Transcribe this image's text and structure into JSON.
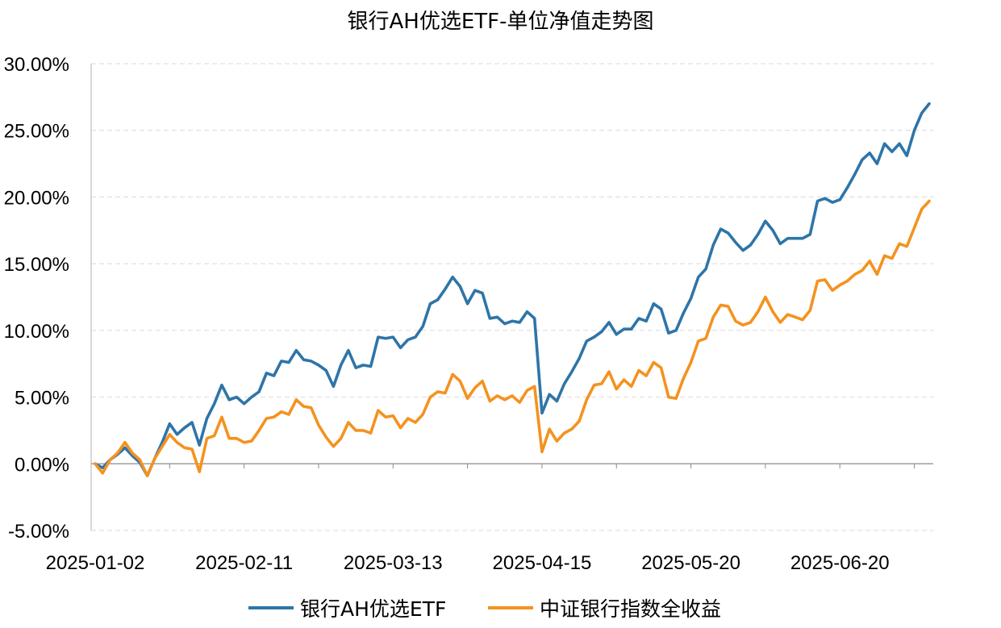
{
  "chart_data": {
    "type": "line",
    "title": "银行AH优选ETF-单位净值走势图",
    "xlabel": "",
    "ylabel": "",
    "ylim": [
      -0.05,
      0.3
    ],
    "y_ticks": [
      "-5.00%",
      "0.00%",
      "5.00%",
      "10.00%",
      "15.00%",
      "20.00%",
      "25.00%",
      "30.00%"
    ],
    "x_tick_labels": [
      "2025-01-02",
      "2025-02-11",
      "2025-03-13",
      "2025-04-15",
      "2025-05-20",
      "2025-06-20"
    ],
    "x_tick_positions": [
      0,
      20,
      40,
      60,
      80,
      100
    ],
    "grid": "horizontal-dashed",
    "legend_position": "bottom",
    "series": [
      {
        "name": "银行AH优选ETF",
        "color": "#2E75A8",
        "values": [
          0.0,
          -0.003,
          0.003,
          0.007,
          0.012,
          0.006,
          0.001,
          -0.009,
          0.004,
          0.016,
          0.03,
          0.022,
          0.027,
          0.031,
          0.014,
          0.034,
          0.045,
          0.059,
          0.048,
          0.05,
          0.045,
          0.05,
          0.054,
          0.068,
          0.066,
          0.077,
          0.076,
          0.085,
          0.078,
          0.077,
          0.074,
          0.07,
          0.058,
          0.074,
          0.085,
          0.072,
          0.074,
          0.073,
          0.095,
          0.094,
          0.095,
          0.087,
          0.093,
          0.095,
          0.103,
          0.12,
          0.123,
          0.131,
          0.14,
          0.133,
          0.12,
          0.13,
          0.128,
          0.109,
          0.11,
          0.105,
          0.107,
          0.106,
          0.114,
          0.109,
          0.038,
          0.052,
          0.047,
          0.06,
          0.069,
          0.079,
          0.092,
          0.095,
          0.099,
          0.106,
          0.097,
          0.101,
          0.101,
          0.109,
          0.107,
          0.12,
          0.116,
          0.098,
          0.1,
          0.113,
          0.124,
          0.14,
          0.146,
          0.164,
          0.176,
          0.173,
          0.166,
          0.16,
          0.164,
          0.172,
          0.182,
          0.175,
          0.165,
          0.169,
          0.169,
          0.169,
          0.172,
          0.197,
          0.199,
          0.196,
          0.198,
          0.207,
          0.217,
          0.228,
          0.233,
          0.225,
          0.24,
          0.234,
          0.24,
          0.231,
          0.25,
          0.263,
          0.27
        ]
      },
      {
        "name": "中证银行指数全收益",
        "color": "#F4921F",
        "values": [
          0.0,
          -0.007,
          0.003,
          0.008,
          0.016,
          0.008,
          0.003,
          -0.009,
          0.004,
          0.013,
          0.022,
          0.016,
          0.012,
          0.011,
          -0.006,
          0.019,
          0.021,
          0.035,
          0.019,
          0.019,
          0.016,
          0.017,
          0.025,
          0.034,
          0.035,
          0.039,
          0.037,
          0.048,
          0.043,
          0.042,
          0.029,
          0.02,
          0.013,
          0.019,
          0.031,
          0.025,
          0.025,
          0.023,
          0.04,
          0.035,
          0.036,
          0.027,
          0.034,
          0.031,
          0.037,
          0.05,
          0.054,
          0.053,
          0.067,
          0.062,
          0.049,
          0.057,
          0.062,
          0.047,
          0.051,
          0.048,
          0.051,
          0.046,
          0.055,
          0.058,
          0.009,
          0.026,
          0.017,
          0.023,
          0.026,
          0.032,
          0.048,
          0.059,
          0.06,
          0.069,
          0.056,
          0.063,
          0.058,
          0.07,
          0.066,
          0.076,
          0.072,
          0.05,
          0.049,
          0.064,
          0.076,
          0.092,
          0.094,
          0.11,
          0.119,
          0.118,
          0.107,
          0.104,
          0.106,
          0.114,
          0.125,
          0.114,
          0.106,
          0.112,
          0.11,
          0.108,
          0.115,
          0.137,
          0.138,
          0.13,
          0.134,
          0.137,
          0.142,
          0.145,
          0.152,
          0.142,
          0.156,
          0.154,
          0.165,
          0.163,
          0.177,
          0.191,
          0.197
        ]
      }
    ]
  }
}
